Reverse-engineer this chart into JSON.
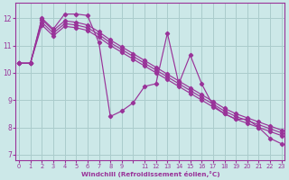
{
  "bg_color": "#cce8e8",
  "grid_color": "#aacccc",
  "line_color": "#993399",
  "xlabel": "Windchill (Refroidissement éolien,°C)",
  "xlim": [
    -0.3,
    23.3
  ],
  "ylim": [
    6.8,
    12.55
  ],
  "yticks": [
    7,
    8,
    9,
    10,
    11,
    12
  ],
  "xtick_positions": [
    0,
    1,
    2,
    3,
    4,
    5,
    6,
    7,
    8,
    9,
    10,
    11,
    12,
    13,
    14,
    15,
    16,
    17,
    18,
    19,
    20,
    21,
    22,
    23
  ],
  "xtick_labels": [
    "0",
    "1",
    "2",
    "3",
    "4",
    "5",
    "6",
    "7",
    "8",
    "9",
    "",
    "11",
    "12",
    "13",
    "14",
    "15",
    "16",
    "17",
    "18",
    "19",
    "20",
    "21",
    "22",
    "23"
  ],
  "series": [
    {
      "x": [
        0,
        1,
        2,
        3,
        4,
        5,
        6,
        7,
        8,
        9,
        10,
        11,
        12,
        13,
        14,
        15,
        16,
        17,
        18,
        19,
        20,
        21,
        22,
        23
      ],
      "y": [
        10.35,
        10.35,
        12.0,
        11.6,
        12.15,
        12.15,
        12.1,
        11.1,
        8.4,
        8.6,
        8.9,
        9.5,
        9.6,
        11.45,
        9.6,
        10.65,
        9.6,
        8.8,
        8.5,
        8.3,
        8.3,
        8.0,
        7.6,
        7.4
      ]
    },
    {
      "x": [
        0,
        1,
        2,
        3,
        4,
        5,
        6,
        7,
        8,
        9,
        10,
        11,
        12,
        13,
        14,
        15,
        16,
        17,
        18,
        19,
        20,
        21,
        22,
        23
      ],
      "y": [
        10.35,
        10.35,
        11.95,
        11.55,
        11.9,
        11.85,
        11.75,
        11.5,
        11.2,
        10.95,
        10.7,
        10.45,
        10.2,
        9.95,
        9.7,
        9.45,
        9.2,
        8.95,
        8.7,
        8.5,
        8.35,
        8.2,
        8.05,
        7.9
      ]
    },
    {
      "x": [
        0,
        1,
        2,
        3,
        4,
        5,
        6,
        7,
        8,
        9,
        10,
        11,
        12,
        13,
        14,
        15,
        16,
        17,
        18,
        19,
        20,
        21,
        22,
        23
      ],
      "y": [
        10.35,
        10.35,
        11.85,
        11.45,
        11.8,
        11.75,
        11.65,
        11.4,
        11.1,
        10.85,
        10.6,
        10.35,
        10.1,
        9.85,
        9.6,
        9.35,
        9.1,
        8.85,
        8.6,
        8.4,
        8.25,
        8.1,
        7.95,
        7.8
      ]
    },
    {
      "x": [
        0,
        1,
        2,
        3,
        4,
        5,
        6,
        7,
        8,
        9,
        10,
        11,
        12,
        13,
        14,
        15,
        16,
        17,
        18,
        19,
        20,
        21,
        22,
        23
      ],
      "y": [
        10.35,
        10.35,
        11.75,
        11.35,
        11.7,
        11.65,
        11.55,
        11.3,
        11.0,
        10.75,
        10.5,
        10.25,
        10.0,
        9.75,
        9.5,
        9.25,
        9.0,
        8.75,
        8.5,
        8.3,
        8.15,
        8.0,
        7.85,
        7.7
      ]
    }
  ]
}
